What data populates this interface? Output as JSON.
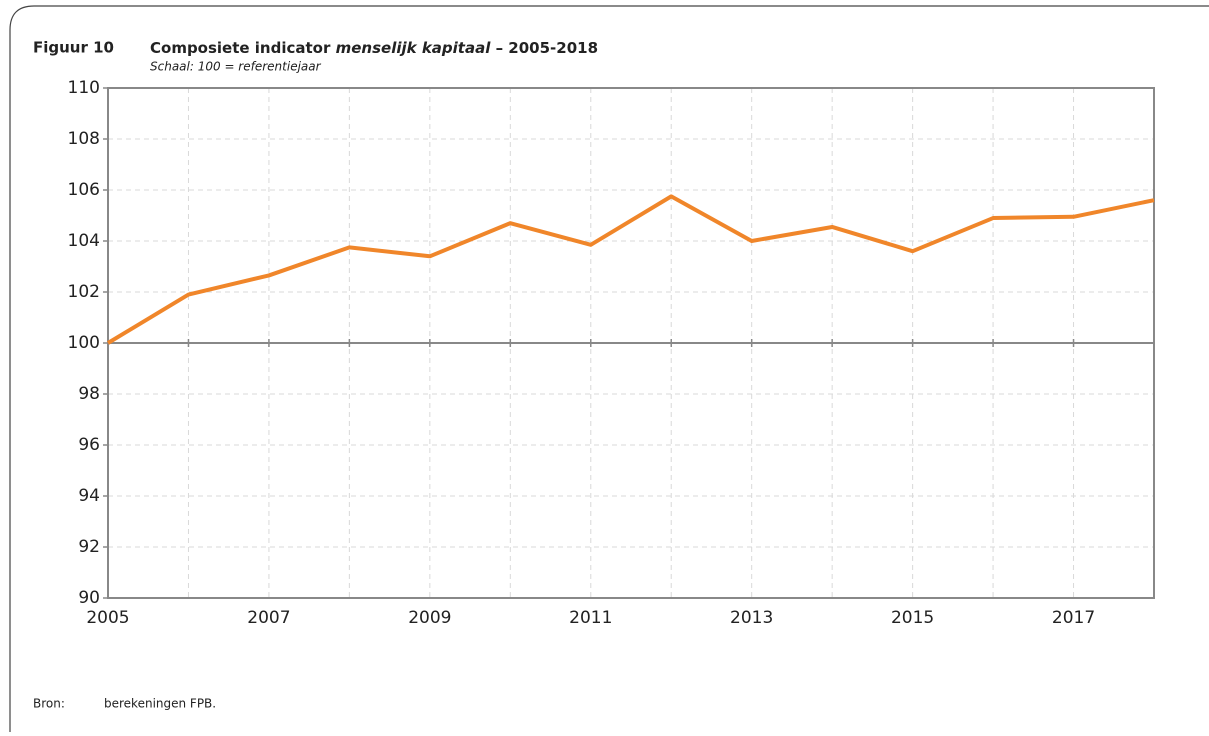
{
  "chart_data": {
    "type": "line",
    "figure_label": "Figuur 10",
    "title_parts": [
      "Composiete indicator ",
      "menselijk kapitaal",
      " – 2005-2018"
    ],
    "subtitle": "Schaal: 100 = referentiejaar",
    "source_label": "Bron:",
    "source": "berekeningen FPB.",
    "x": [
      2005,
      2006,
      2007,
      2008,
      2009,
      2010,
      2011,
      2012,
      2013,
      2014,
      2015,
      2016,
      2017,
      2018
    ],
    "series": [
      {
        "name": "Composiete indicator menselijk kapitaal",
        "color": "#f0862a",
        "values": [
          100,
          101.9,
          102.65,
          103.75,
          103.4,
          104.7,
          103.85,
          105.75,
          104.0,
          104.55,
          103.6,
          104.9,
          104.95,
          105.6
        ]
      }
    ],
    "xlim": [
      2005,
      2018
    ],
    "xticks": [
      2005,
      2007,
      2009,
      2011,
      2013,
      2015,
      2017
    ],
    "ylim": [
      90,
      110
    ],
    "yticks": [
      90,
      92,
      94,
      96,
      98,
      100,
      102,
      104,
      106,
      108,
      110
    ],
    "reference_line": 100,
    "grid": true
  }
}
